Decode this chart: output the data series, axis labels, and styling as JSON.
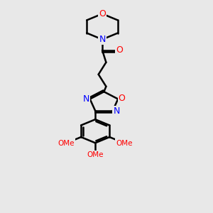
{
  "background_color": "#e8e8e8",
  "bond_color": "#000000",
  "atom_colors": {
    "O": "#ff0000",
    "N": "#0000ff",
    "C": "#000000"
  },
  "figsize": [
    3.0,
    3.0
  ],
  "dpi": 100,
  "xlim": [
    0,
    10
  ],
  "ylim": [
    0,
    14
  ]
}
